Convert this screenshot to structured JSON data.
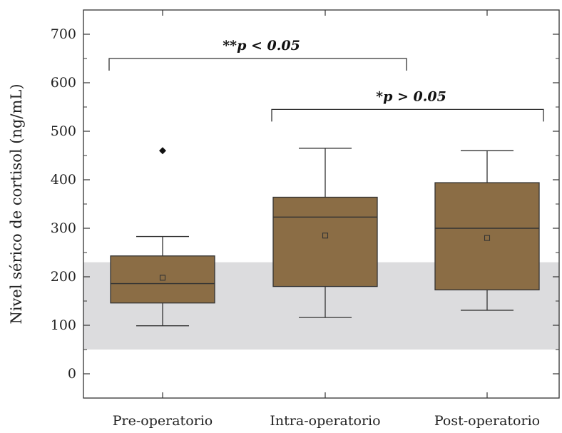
{
  "chart_data": {
    "type": "box",
    "ylabel": "Nivel sérico de cortisol (ng/mL)",
    "xlabel": "",
    "ylim": [
      -50,
      750
    ],
    "yticks": [
      0,
      100,
      200,
      300,
      400,
      500,
      600,
      700
    ],
    "categories": [
      "Pre-operatorio",
      "Intra-operatorio",
      "Post-operatorio"
    ],
    "reference_band": {
      "from": 50,
      "to": 230,
      "color": "#dcdcde"
    },
    "box_color": "#8b6d45",
    "boxes": [
      {
        "category": "Pre-operatorio",
        "whisker_low": 99,
        "q1": 146,
        "median": 186,
        "q3": 243,
        "whisker_high": 283,
        "mean": 198,
        "outliers": [
          460
        ]
      },
      {
        "category": "Intra-operatorio",
        "whisker_low": 116,
        "q1": 180,
        "median": 323,
        "q3": 364,
        "whisker_high": 465,
        "mean": 285,
        "outliers": []
      },
      {
        "category": "Post-operatorio",
        "whisker_low": 131,
        "q1": 173,
        "median": 300,
        "q3": 394,
        "whisker_high": 460,
        "mean": 280,
        "outliers": []
      }
    ],
    "annotations": [
      {
        "text": "**p < 0.05",
        "from": "Pre-operatorio",
        "to": "Intra-operatorio",
        "level": 650
      },
      {
        "text": "*p > 0.05",
        "from": "Intra-operatorio",
        "to": "Post-operatorio",
        "level": 545
      }
    ]
  }
}
